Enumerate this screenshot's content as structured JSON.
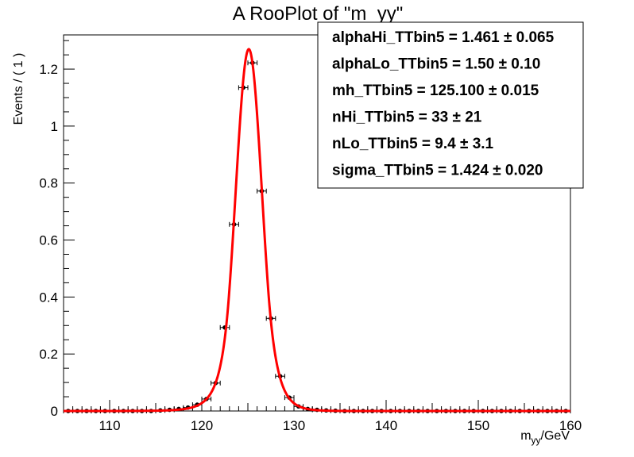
{
  "chart_data": {
    "type": "scatter",
    "title": "A RooPlot of \"m_yy\"",
    "xlabel": "m",
    "xlabel_sub": "yy",
    "xlabel_unit": "/GeV",
    "ylabel": "Events / ( 1 )",
    "xlim": [
      105,
      160
    ],
    "ylim": [
      0,
      1.32
    ],
    "xticks": [
      110,
      120,
      130,
      140,
      150,
      160
    ],
    "yticks": [
      0,
      0.2,
      0.4,
      0.6,
      0.8,
      1,
      1.2
    ],
    "ytick_labels": [
      "0",
      "0.2",
      "0.4",
      "0.6",
      "0.8",
      "1",
      "1.2"
    ],
    "series": [
      {
        "name": "data",
        "style": "points-with-errors",
        "color": "#000000",
        "x": [
          105.5,
          106.5,
          107.5,
          108.5,
          109.5,
          110.5,
          111.5,
          112.5,
          113.5,
          114.5,
          115.5,
          116.5,
          117.5,
          118.5,
          119.5,
          120.5,
          121.5,
          122.5,
          123.5,
          124.5,
          125.5,
          126.5,
          127.5,
          128.5,
          129.5,
          130.5,
          131.5,
          132.5,
          133.5,
          134.5,
          135.5,
          136.5,
          137.5,
          138.5,
          139.5,
          140.5,
          141.5,
          142.5,
          143.5,
          144.5,
          145.5,
          146.5,
          147.5,
          148.5,
          149.5,
          150.5,
          151.5,
          152.5,
          153.5,
          154.5,
          155.5,
          156.5,
          157.5,
          158.5,
          159.5
        ],
        "y": [
          0,
          0,
          0,
          0,
          0,
          0,
          0,
          0,
          0,
          0,
          0.002,
          0.004,
          0.007,
          0.012,
          0.022,
          0.042,
          0.098,
          0.293,
          0.655,
          1.135,
          1.222,
          0.772,
          0.325,
          0.122,
          0.047,
          0.016,
          0.007,
          0.004,
          0.002,
          0.001,
          0,
          0,
          0,
          0,
          0,
          0,
          0,
          0,
          0,
          0,
          0,
          0,
          0,
          0,
          0,
          0,
          0,
          0,
          0,
          0,
          0,
          0,
          0,
          0,
          0
        ]
      },
      {
        "name": "fit",
        "style": "line",
        "color": "#ff0000",
        "model": "double-sided crystal ball",
        "peak": 1.27,
        "mh": 125.1,
        "sigma": 1.424
      }
    ],
    "annotations": [
      {
        "label": "alphaHi_TTbin5 = ",
        "value": "1.461",
        "error": "0.065"
      },
      {
        "label": "alphaLo_TTbin5 = ",
        "value": "1.50",
        "error": "0.10"
      },
      {
        "label": "mh_TTbin5 = ",
        "value": "125.100",
        "error": "0.015"
      },
      {
        "label": "nHi_TTbin5 = ",
        "value": "33",
        "error": "21"
      },
      {
        "label": "nLo_TTbin5 = ",
        "value": "9.4",
        "error": "3.1"
      },
      {
        "label": "sigma_TTbin5 = ",
        "value": "1.424",
        "error": "0.020"
      }
    ],
    "pm_symbol": "±"
  }
}
